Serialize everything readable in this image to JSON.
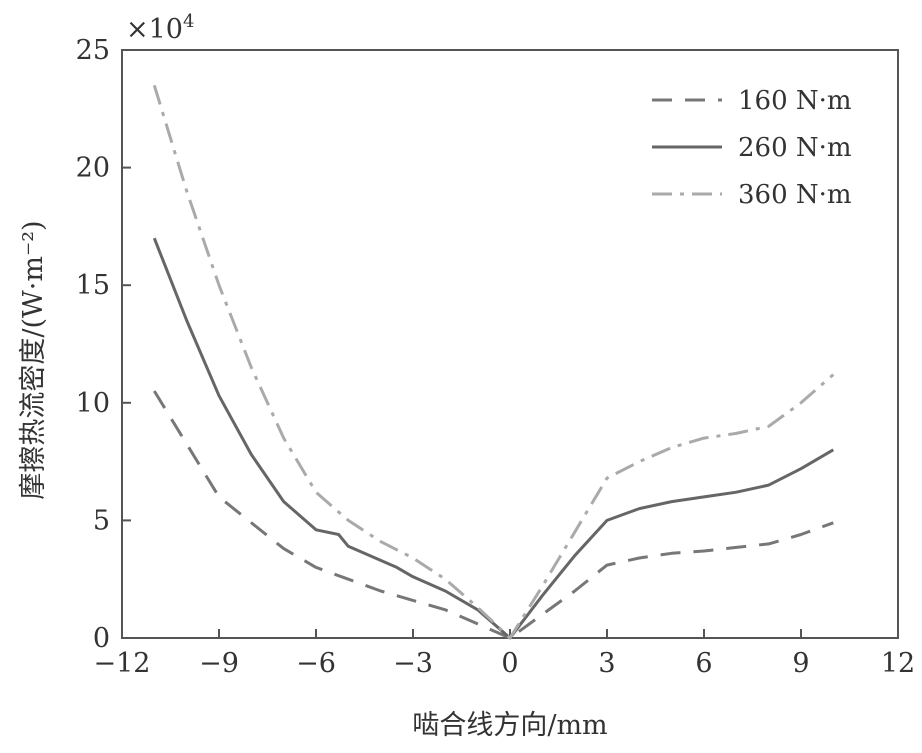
{
  "chart_data": {
    "type": "line",
    "title": "",
    "xlabel": "啮合线方向/mm",
    "ylabel": "摩擦热流密度/(W·m⁻²)",
    "y_multiplier_label": "×10",
    "y_multiplier_exponent": "4",
    "xlim": [
      -12,
      12
    ],
    "ylim": [
      0,
      25
    ],
    "x_ticks": [
      -12,
      -9,
      -6,
      -3,
      0,
      3,
      6,
      9,
      12
    ],
    "x_tick_labels": [
      "−12",
      "−9",
      "−6",
      "−3",
      "0",
      "3",
      "6",
      "9",
      "12"
    ],
    "y_ticks": [
      0,
      5,
      10,
      15,
      20,
      25
    ],
    "y_tick_labels": [
      "0",
      "5",
      "10",
      "15",
      "20",
      "25"
    ],
    "grid": false,
    "legend_position": "top-right",
    "series": [
      {
        "name": "160 N·m",
        "style": "dashed",
        "color": "#777777",
        "x": [
          -11,
          -9,
          -7,
          -6,
          -5,
          -4,
          -3,
          -2,
          -1,
          0,
          1,
          2,
          3,
          4,
          5,
          6,
          7,
          8,
          9,
          10
        ],
        "y": [
          10.5,
          6.0,
          3.8,
          3.0,
          2.5,
          2.0,
          1.6,
          1.2,
          0.6,
          0.0,
          1.0,
          2.0,
          3.1,
          3.4,
          3.6,
          3.7,
          3.85,
          4.0,
          4.4,
          4.9
        ]
      },
      {
        "name": "260 N·m",
        "style": "solid",
        "color": "#666666",
        "x": [
          -11,
          -10,
          -9,
          -8,
          -7,
          -6,
          -5.3,
          -5,
          -4,
          -3.5,
          -3,
          -2,
          -1,
          0,
          1,
          2,
          3,
          4,
          5,
          6,
          7,
          8,
          9,
          10
        ],
        "y": [
          17.0,
          13.5,
          10.3,
          7.8,
          5.8,
          4.6,
          4.4,
          3.9,
          3.3,
          3.0,
          2.6,
          2.0,
          1.2,
          0.0,
          1.8,
          3.5,
          5.0,
          5.5,
          5.8,
          6.0,
          6.2,
          6.5,
          7.2,
          8.0
        ]
      },
      {
        "name": "360 N·m",
        "style": "dash-dot",
        "color": "#aaaaaa",
        "x": [
          -11,
          -10,
          -9,
          -8,
          -7,
          -6,
          -5,
          -4,
          -3,
          -2,
          -1,
          0,
          1,
          2,
          3,
          4,
          5,
          6,
          7,
          8,
          9,
          10
        ],
        "y": [
          23.5,
          19.0,
          15.0,
          11.5,
          8.5,
          6.2,
          5.0,
          4.1,
          3.4,
          2.5,
          1.3,
          0.0,
          2.2,
          4.5,
          6.8,
          7.5,
          8.1,
          8.5,
          8.7,
          9.0,
          10.0,
          11.2
        ]
      }
    ]
  }
}
